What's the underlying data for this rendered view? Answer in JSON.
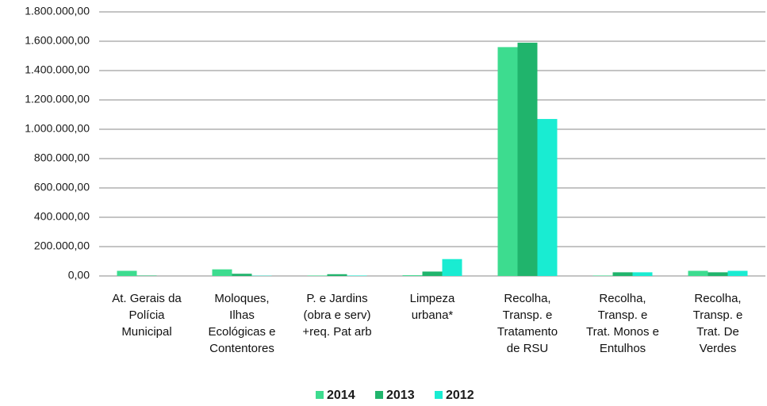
{
  "chart_data": {
    "type": "bar",
    "categories": [
      "At. Gerais da\nPolícia\nMunicipal",
      "Moloques,\nIlhas\nEcológicas e\nContentores",
      "P. e Jardins\n(obra e serv)\n+req. Pat arb",
      "Limpeza\nurbana*",
      "Recolha,\nTransp. e\nTratamento\nde RSU",
      "Recolha,\nTransp. e\nTrat. Monos e\nEntulhos",
      "Recolha,\nTransp. e\nTrat. De\nVerdes"
    ],
    "series": [
      {
        "name": "2014",
        "color": "#3ddc8f",
        "values": [
          35000,
          45000,
          3000,
          5000,
          1560000,
          3000,
          35000
        ]
      },
      {
        "name": "2013",
        "color": "#20b46c",
        "values": [
          3000,
          15000,
          12000,
          30000,
          1590000,
          25000,
          25000
        ]
      },
      {
        "name": "2012",
        "color": "#19ecd2",
        "values": [
          0,
          2000,
          3000,
          115000,
          1070000,
          25000,
          35000
        ]
      }
    ],
    "ylim": [
      0,
      1800000
    ],
    "yticks": [
      {
        "value": 0,
        "label": "0,00"
      },
      {
        "value": 200000,
        "label": "200.000,00"
      },
      {
        "value": 400000,
        "label": "400.000,00"
      },
      {
        "value": 600000,
        "label": "600.000,00"
      },
      {
        "value": 800000,
        "label": "800.000,00"
      },
      {
        "value": 1000000,
        "label": "1.000.000,00"
      },
      {
        "value": 1200000,
        "label": "1.200.000,00"
      },
      {
        "value": 1400000,
        "label": "1.400.000,00"
      },
      {
        "value": 1600000,
        "label": "1.600.000,00"
      },
      {
        "value": 1800000,
        "label": "1.800.000,00"
      }
    ],
    "grid": true,
    "legend": "bottom"
  }
}
